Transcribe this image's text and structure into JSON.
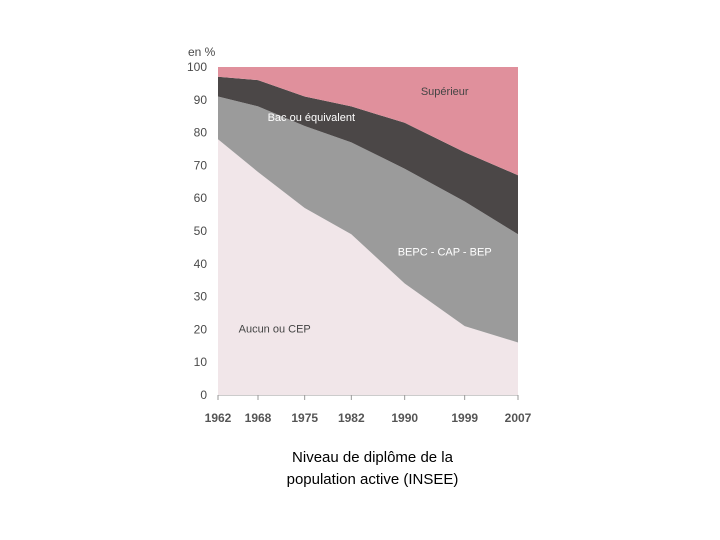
{
  "chart_data": {
    "type": "area",
    "stacked": true,
    "ylabel": "en %",
    "ylim": [
      0,
      100
    ],
    "yticks": [
      0,
      10,
      20,
      30,
      40,
      50,
      60,
      70,
      80,
      90,
      100
    ],
    "x": [
      1962,
      1968,
      1975,
      1982,
      1990,
      1999,
      2007
    ],
    "series": [
      {
        "name": "Aucun ou CEP",
        "color": "#f1e6e9",
        "values": [
          78,
          68,
          57,
          49,
          34,
          21,
          16
        ]
      },
      {
        "name": "BEPC - CAP - BEP",
        "color": "#9b9b9b",
        "values": [
          13,
          20,
          25,
          28,
          35,
          38,
          33
        ]
      },
      {
        "name": "Bac ou équivalent",
        "color": "#4b4747",
        "values": [
          6,
          8,
          9,
          11,
          14,
          15,
          18
        ]
      },
      {
        "name": "Supérieur",
        "color": "#e0909c",
        "values": [
          3,
          4,
          9,
          12,
          17,
          26,
          33
        ]
      }
    ]
  },
  "caption": {
    "line1": "Niveau de diplôme de la",
    "line2": "population active (INSEE)"
  }
}
